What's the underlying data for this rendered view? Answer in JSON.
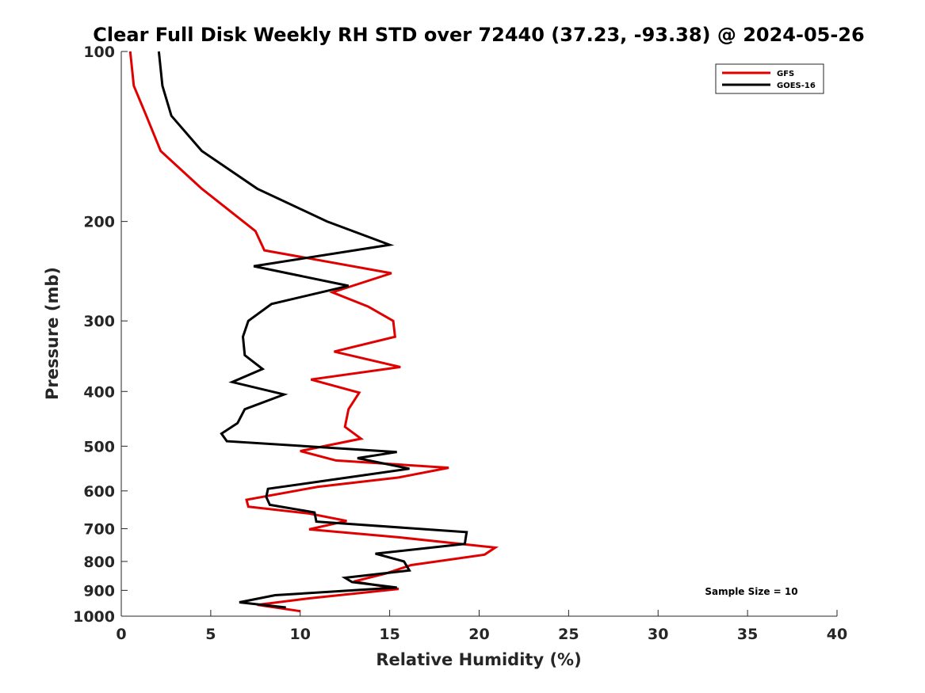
{
  "chart_data": {
    "type": "line",
    "title": "Clear Full Disk Weekly RH STD over 72440 (37.23, -93.38) @ 2024-05-26",
    "xlabel": "Relative Humidity (%)",
    "ylabel": "Pressure (mb)",
    "xlim": [
      0,
      40
    ],
    "ylim": [
      100,
      1000
    ],
    "y_scale": "log",
    "y_reversed": true,
    "x_ticks": [
      0,
      5,
      10,
      15,
      20,
      25,
      30,
      35,
      40
    ],
    "y_ticks": [
      100,
      200,
      300,
      400,
      500,
      600,
      700,
      800,
      900,
      1000
    ],
    "grid": false,
    "legend_position": "top-right",
    "annotation": "Sample Size = 10",
    "series": [
      {
        "name": "GFS",
        "color": "#e00000",
        "points": [
          [
            0.5,
            100
          ],
          [
            0.7,
            115
          ],
          [
            1.4,
            130
          ],
          [
            2.2,
            150
          ],
          [
            4.5,
            175
          ],
          [
            7.5,
            208
          ],
          [
            8.0,
            225
          ],
          [
            15.1,
            247
          ],
          [
            11.8,
            267
          ],
          [
            13.8,
            283
          ],
          [
            15.2,
            300
          ],
          [
            15.3,
            320
          ],
          [
            11.9,
            340
          ],
          [
            15.6,
            362
          ],
          [
            10.6,
            381
          ],
          [
            13.3,
            402
          ],
          [
            12.7,
            430
          ],
          [
            12.5,
            462
          ],
          [
            13.4,
            485
          ],
          [
            10.0,
            510
          ],
          [
            12.0,
            530
          ],
          [
            18.3,
            546
          ],
          [
            15.5,
            568
          ],
          [
            11.0,
            590
          ],
          [
            7.0,
            622
          ],
          [
            7.1,
            640
          ],
          [
            10.5,
            658
          ],
          [
            12.6,
            678
          ],
          [
            10.5,
            702
          ],
          [
            15.5,
            725
          ],
          [
            20.9,
            756
          ],
          [
            20.3,
            778
          ],
          [
            16.2,
            812
          ],
          [
            14.8,
            840
          ],
          [
            13.0,
            868
          ],
          [
            15.5,
            895
          ],
          [
            10.5,
            930
          ],
          [
            7.6,
            955
          ],
          [
            10.0,
            980
          ]
        ]
      },
      {
        "name": "GOES-16",
        "color": "#000000",
        "points": [
          [
            2.1,
            100
          ],
          [
            2.3,
            115
          ],
          [
            2.8,
            130
          ],
          [
            4.5,
            150
          ],
          [
            7.6,
            175
          ],
          [
            11.5,
            200
          ],
          [
            15.0,
            220
          ],
          [
            7.4,
            240
          ],
          [
            12.7,
            260
          ],
          [
            8.4,
            280
          ],
          [
            7.1,
            300
          ],
          [
            6.8,
            320
          ],
          [
            6.9,
            345
          ],
          [
            7.9,
            365
          ],
          [
            6.2,
            385
          ],
          [
            9.1,
            405
          ],
          [
            6.9,
            430
          ],
          [
            6.5,
            455
          ],
          [
            5.6,
            475
          ],
          [
            5.9,
            490
          ],
          [
            15.4,
            512
          ],
          [
            13.2,
            525
          ],
          [
            16.1,
            548
          ],
          [
            12.0,
            572
          ],
          [
            8.2,
            595
          ],
          [
            8.1,
            615
          ],
          [
            8.3,
            635
          ],
          [
            10.8,
            655
          ],
          [
            10.9,
            680
          ],
          [
            19.3,
            710
          ],
          [
            19.2,
            745
          ],
          [
            14.2,
            775
          ],
          [
            15.8,
            800
          ],
          [
            16.1,
            830
          ],
          [
            12.5,
            855
          ],
          [
            12.9,
            870
          ],
          [
            15.4,
            890
          ],
          [
            8.6,
            918
          ],
          [
            6.6,
            945
          ],
          [
            9.2,
            965
          ]
        ]
      }
    ]
  }
}
